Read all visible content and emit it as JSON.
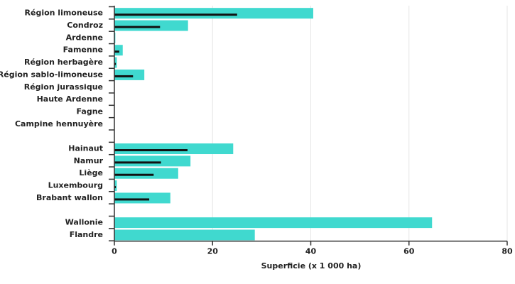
{
  "chart_data": {
    "type": "bar",
    "orientation": "horizontal",
    "xlabel": "Superficie (x 1 000 ha)",
    "categories": [
      "Région limoneuse",
      "Condroz",
      "Ardenne",
      "Famenne",
      "Région herbagère",
      "Région sablo-limoneuse",
      "Région jurassique",
      "Haute Ardenne",
      "Fagne",
      "Campine hennuyère",
      null,
      "Hainaut",
      "Namur",
      "Liège",
      "Luxembourg",
      "Brabant wallon",
      null,
      "Wallonie",
      "Flandre"
    ],
    "series": [
      {
        "color": "#40d9cf",
        "values": [
          40.5,
          15.0,
          0.2,
          1.7,
          0.5,
          6.1,
          0,
          0,
          0,
          0,
          null,
          24.2,
          15.5,
          13.0,
          0.5,
          11.4,
          null,
          64.7,
          28.6
        ]
      },
      {
        "color": "#111111",
        "values": [
          25.0,
          9.3,
          null,
          1.0,
          0.3,
          3.8,
          null,
          null,
          null,
          null,
          null,
          14.9,
          9.5,
          8.0,
          0.3,
          7.1,
          null,
          null,
          null
        ]
      }
    ],
    "xlim": [
      0,
      80
    ],
    "xticks": [
      0,
      20,
      40,
      60,
      80
    ],
    "grid": true
  }
}
